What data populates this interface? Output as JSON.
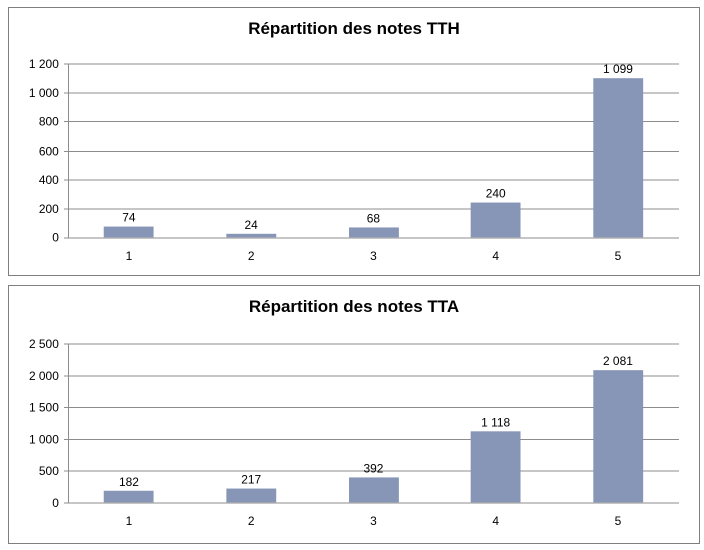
{
  "window": {
    "background": "#ffffff"
  },
  "colors": {
    "bar": "#8795B7",
    "gridline": "#8C8C8C",
    "axis": "#8C8C8C",
    "panel_border": "#7F7F7F",
    "text": "#000000"
  },
  "chart_data": [
    {
      "type": "bar",
      "title": "Répartition des notes TTH",
      "categories": [
        "1",
        "2",
        "3",
        "4",
        "5"
      ],
      "values": [
        74,
        24,
        68,
        240,
        1099
      ],
      "value_labels": [
        "74",
        "24",
        "68",
        "240",
        "1 099"
      ],
      "xlabel": "",
      "ylabel": "",
      "ylim": [
        0,
        1200
      ],
      "ytick_step": 200,
      "ytick_labels": [
        "0",
        "200",
        "400",
        "600",
        "800",
        "1 000",
        "1 200"
      ],
      "grid": true,
      "legend": false,
      "bar_color": "#8795B7"
    },
    {
      "type": "bar",
      "title": "Répartition des notes TTA",
      "categories": [
        "1",
        "2",
        "3",
        "4",
        "5"
      ],
      "values": [
        182,
        217,
        392,
        1118,
        2081
      ],
      "value_labels": [
        "182",
        "217",
        "392",
        "1 118",
        "2 081"
      ],
      "xlabel": "",
      "ylabel": "",
      "ylim": [
        0,
        2500
      ],
      "ytick_step": 500,
      "ytick_labels": [
        "0",
        "500",
        "1 000",
        "1 500",
        "2 000",
        "2 500"
      ],
      "grid": true,
      "legend": false,
      "bar_color": "#8795B7"
    }
  ]
}
